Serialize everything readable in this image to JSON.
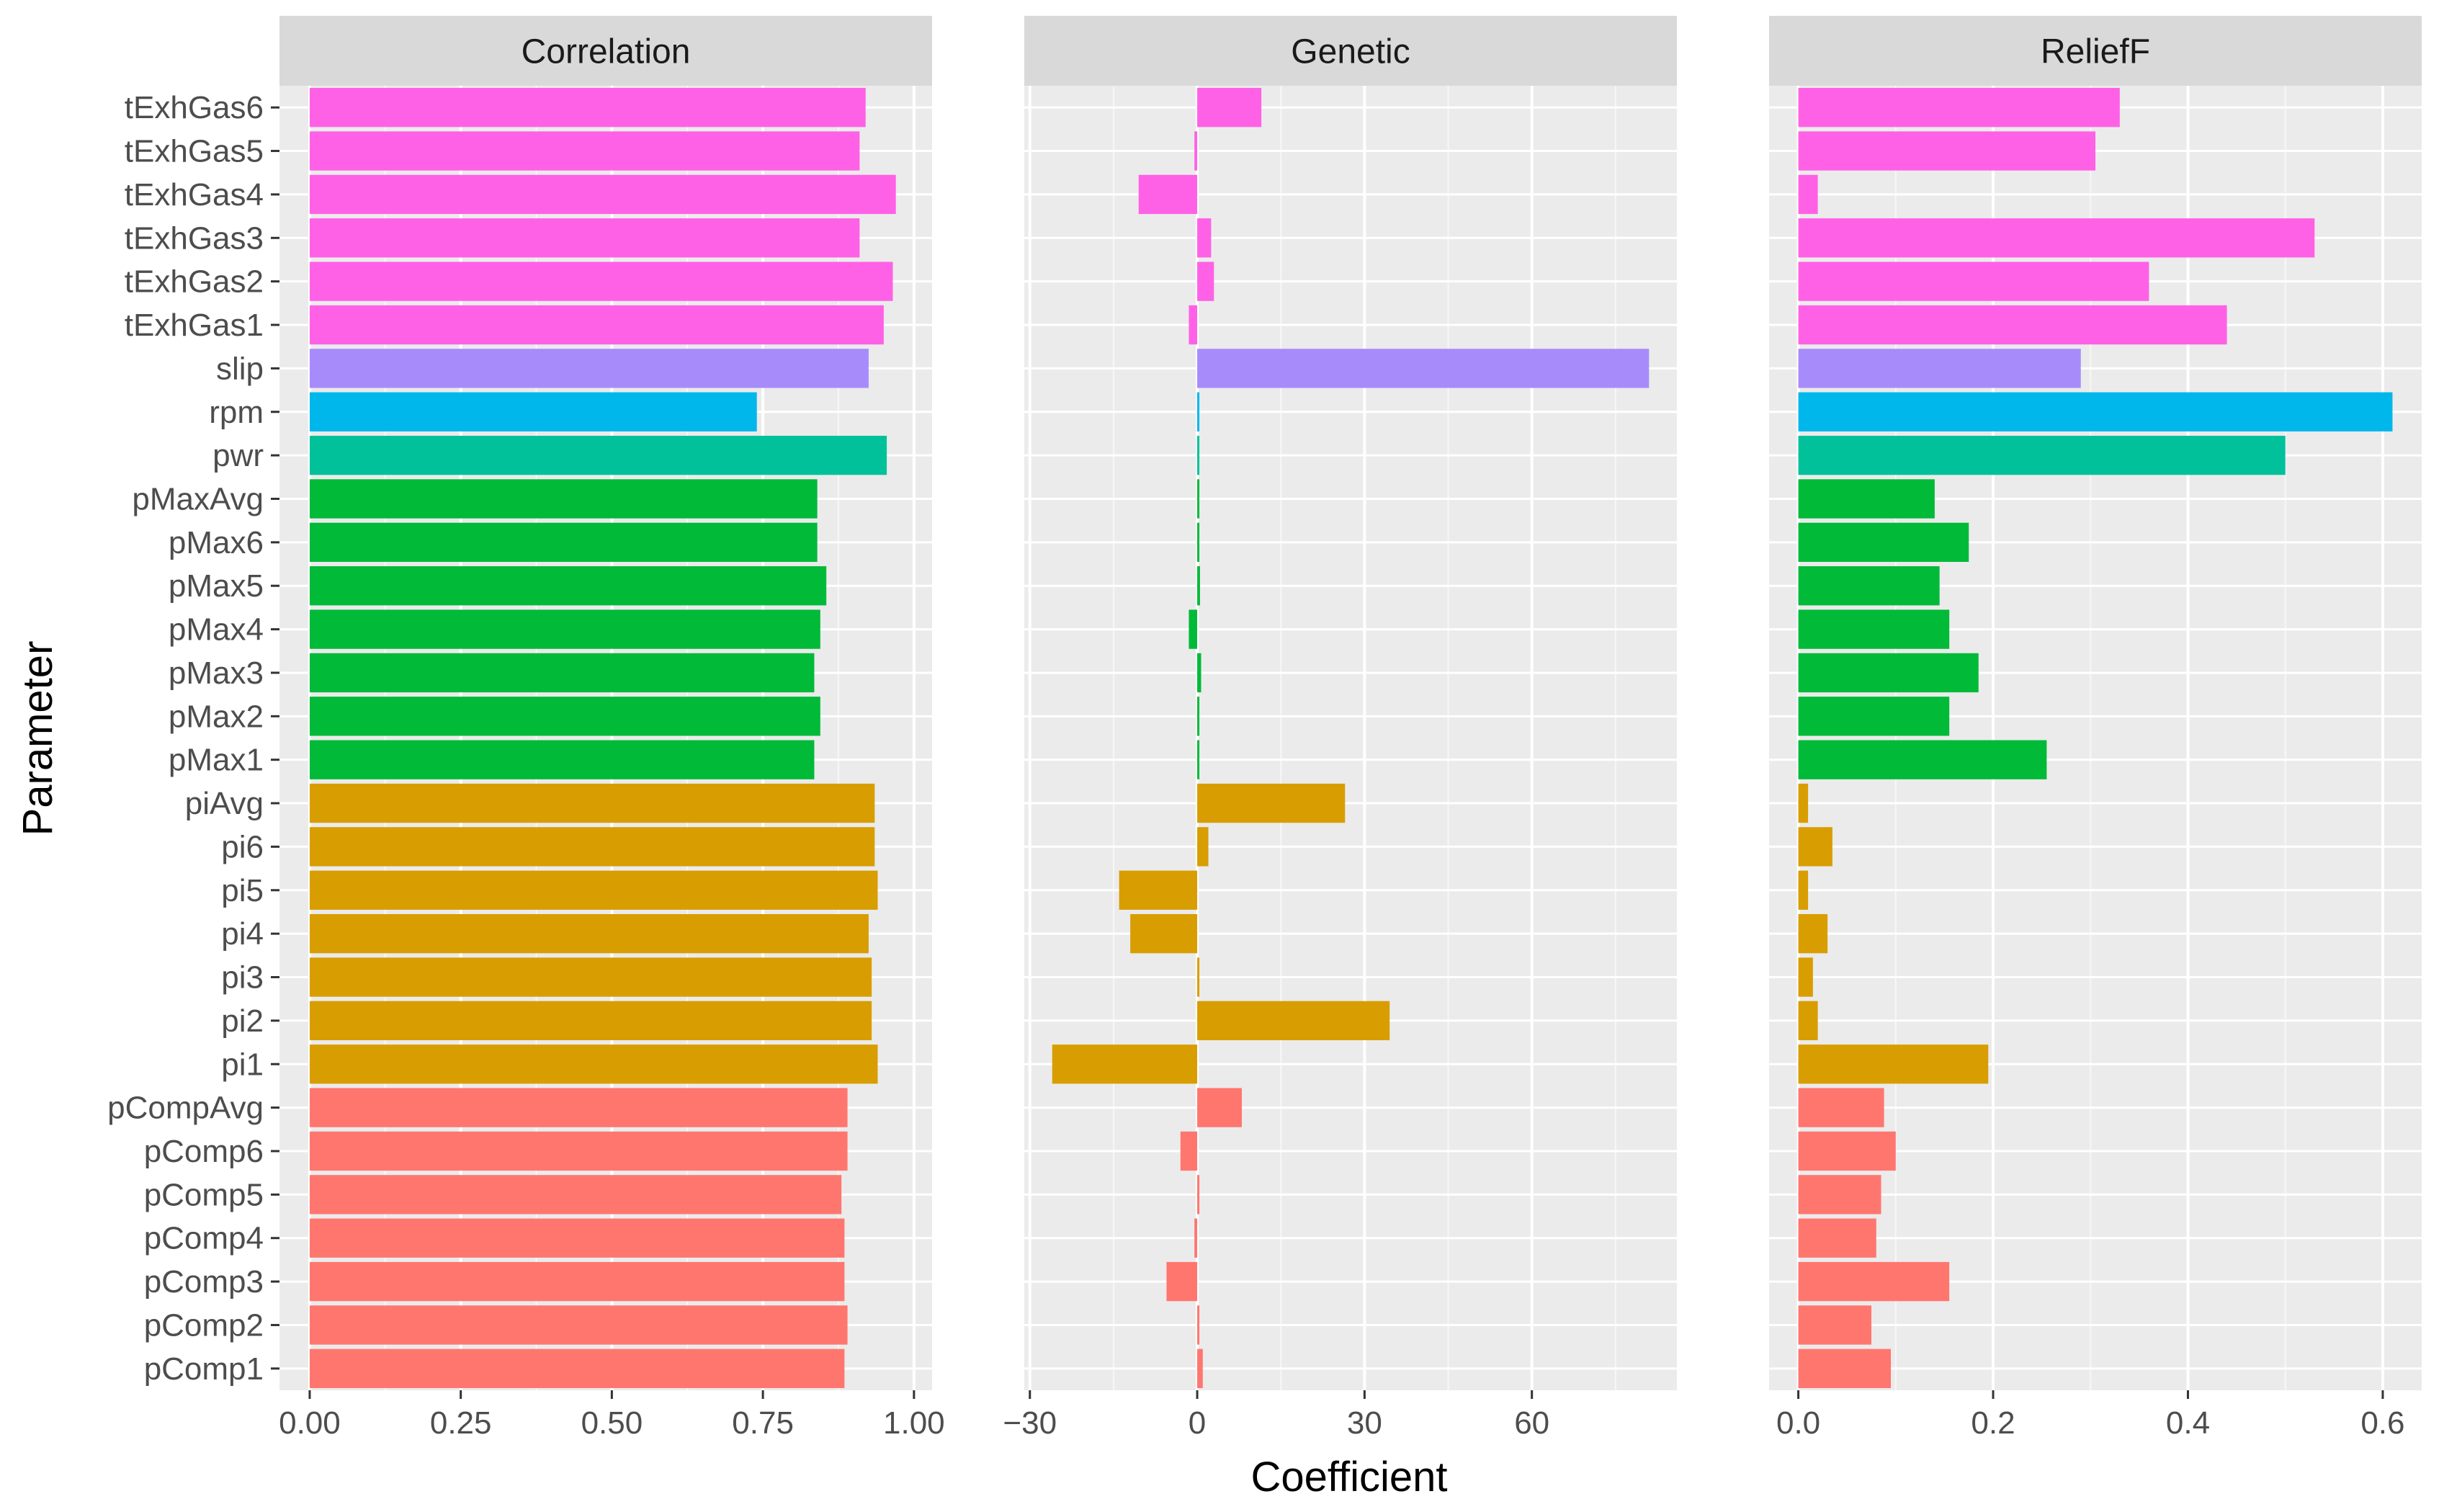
{
  "chart_data": {
    "type": "bar",
    "orientation": "horizontal",
    "xlabel": "Coefficient",
    "ylabel": "Parameter",
    "categories": [
      "tExhGas6",
      "tExhGas5",
      "tExhGas4",
      "tExhGas3",
      "tExhGas2",
      "tExhGas1",
      "slip",
      "rpm",
      "pwr",
      "pMaxAvg",
      "pMax6",
      "pMax5",
      "pMax4",
      "pMax3",
      "pMax2",
      "pMax1",
      "piAvg",
      "pi6",
      "pi5",
      "pi4",
      "pi3",
      "pi2",
      "pi1",
      "pCompAvg",
      "pComp6",
      "pComp5",
      "pComp4",
      "pComp3",
      "pComp2",
      "pComp1"
    ],
    "groups": [
      "tExhGas",
      "tExhGas",
      "tExhGas",
      "tExhGas",
      "tExhGas",
      "tExhGas",
      "slip",
      "rpm",
      "pwr",
      "pMax",
      "pMax",
      "pMax",
      "pMax",
      "pMax",
      "pMax",
      "pMax",
      "pi",
      "pi",
      "pi",
      "pi",
      "pi",
      "pi",
      "pi",
      "pComp",
      "pComp",
      "pComp",
      "pComp",
      "pComp",
      "pComp",
      "pComp"
    ],
    "group_colors": {
      "tExhGas": "#FF61E6",
      "slip": "#A78BFA",
      "rpm": "#00B7EB",
      "pwr": "#00C19A",
      "pMax": "#00BA38",
      "pi": "#D89D00",
      "pComp": "#FF766F"
    },
    "panels": [
      {
        "title": "Correlation",
        "xlim": [
          -0.05,
          1.03
        ],
        "ticks": [
          0,
          0.25,
          0.5,
          0.75,
          1.0
        ],
        "tick_labels": [
          "0.00",
          "0.25",
          "0.50",
          "0.75",
          "1.00"
        ],
        "values": [
          0.92,
          0.91,
          0.97,
          0.91,
          0.965,
          0.95,
          0.925,
          0.74,
          0.955,
          0.84,
          0.84,
          0.855,
          0.845,
          0.835,
          0.845,
          0.835,
          0.935,
          0.935,
          0.94,
          0.925,
          0.93,
          0.93,
          0.94,
          0.89,
          0.89,
          0.88,
          0.885,
          0.885,
          0.89,
          0.885
        ]
      },
      {
        "title": "Genetic",
        "xlim": [
          -31,
          86
        ],
        "ticks": [
          -30,
          0,
          30,
          60
        ],
        "tick_labels": [
          "−30",
          "0",
          "30",
          "60"
        ],
        "values": [
          11.5,
          -0.5,
          -10.5,
          2.5,
          3,
          -1.5,
          81,
          0,
          0.3,
          0,
          0,
          0.5,
          -1.5,
          0.7,
          0,
          0,
          26.5,
          2,
          -14,
          -12,
          0,
          34.5,
          -26,
          8,
          -3,
          0,
          -0.5,
          -5.5,
          0,
          1
        ]
      },
      {
        "title": "ReliefF",
        "xlim": [
          -0.03,
          0.64
        ],
        "ticks": [
          0,
          0.2,
          0.4,
          0.6
        ],
        "tick_labels": [
          "0.0",
          "0.2",
          "0.4",
          "0.6"
        ],
        "values": [
          0.33,
          0.305,
          0.02,
          0.53,
          0.36,
          0.44,
          0.29,
          0.61,
          0.5,
          0.14,
          0.175,
          0.145,
          0.155,
          0.185,
          0.155,
          0.255,
          0.01,
          0.035,
          0.01,
          0.03,
          0.015,
          0.02,
          0.195,
          0.088,
          0.1,
          0.085,
          0.08,
          0.155,
          0.075,
          0.095
        ]
      }
    ]
  }
}
